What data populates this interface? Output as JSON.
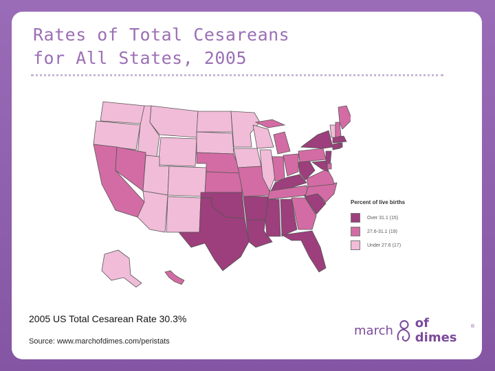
{
  "slide": {
    "title_line1": "Rates of Total Cesareans",
    "title_line2": "for All States, 2005"
  },
  "colors": {
    "high": "#9c3f7c",
    "mid": "#d36ca4",
    "low": "#f1bcd8",
    "border": "#555555",
    "accent": "#9b6fb5"
  },
  "map": {
    "legend": {
      "title": "Percent of live births",
      "entries": [
        {
          "label": "Over 31.1 (15)",
          "class": "high"
        },
        {
          "label": "27.6-31.1 (19)",
          "class": "mid"
        },
        {
          "label": "Under 27.6 (17)",
          "class": "low"
        }
      ]
    }
  },
  "footer": {
    "total_rate": "2005 US Total Cesarean Rate 30.3%",
    "source": "Source: www.marchofdimes.com/peristats"
  },
  "logo": {
    "word1": "march",
    "word2": "of dimes",
    "reg": "®"
  }
}
